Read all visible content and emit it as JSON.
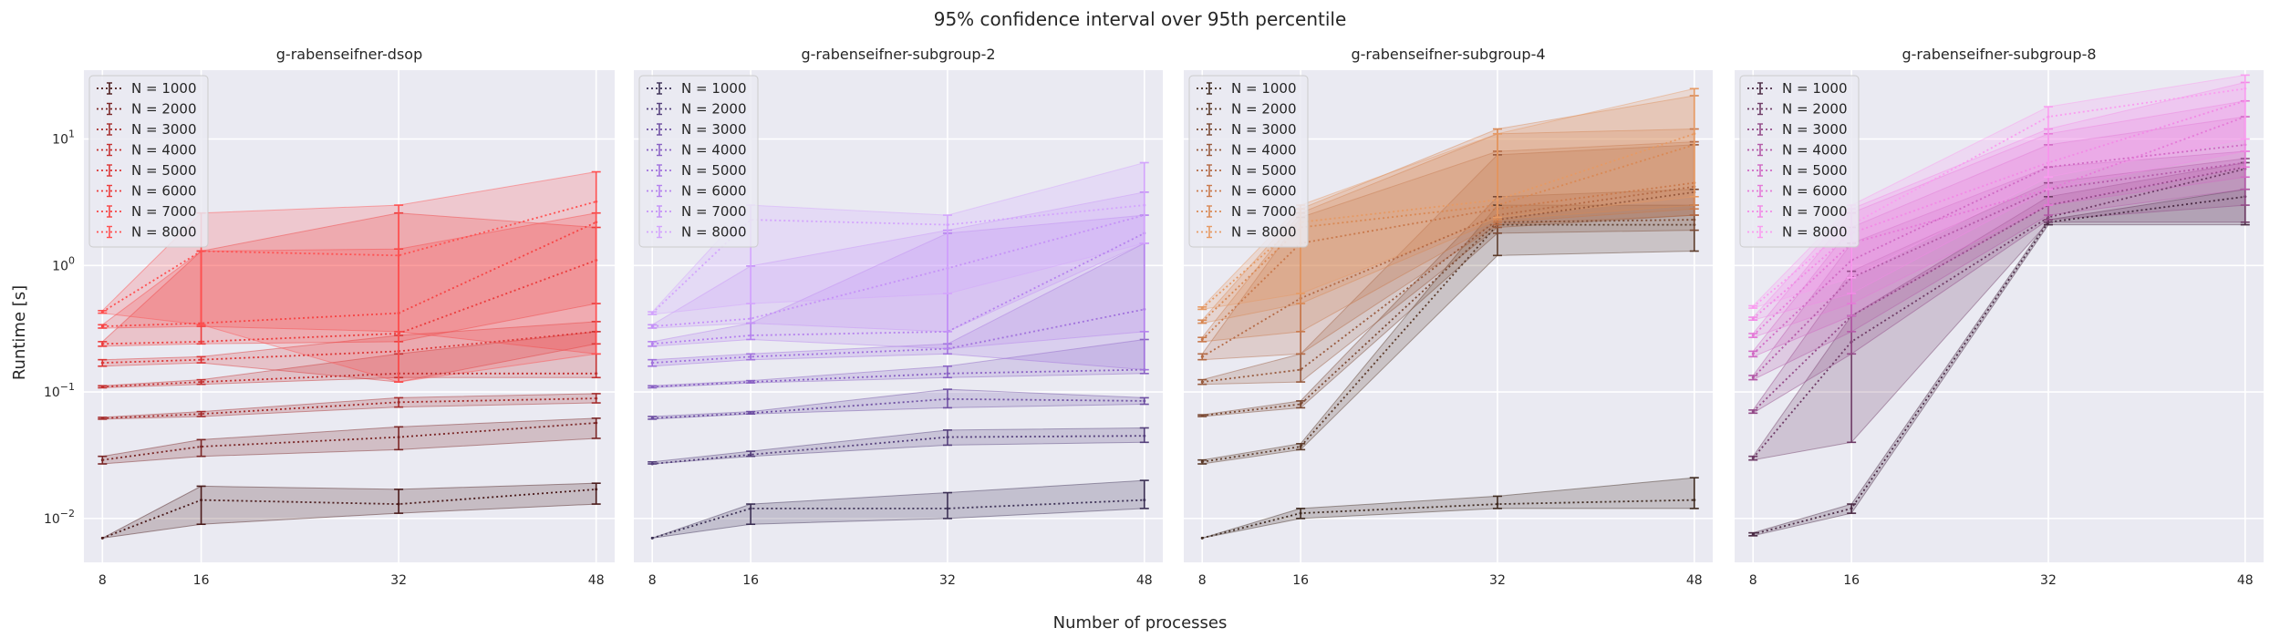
{
  "figure": {
    "title": "95% confidence interval over 95th percentile",
    "xlabel": "Number of processes",
    "ylabel": "Runtime [s]"
  },
  "legend_labels": [
    "N = 1000",
    "N = 2000",
    "N = 3000",
    "N = 4000",
    "N = 5000",
    "N = 6000",
    "N = 7000",
    "N = 8000"
  ],
  "chart_data": [
    {
      "type": "line",
      "title": "g-rabenseifner-dsop",
      "x": [
        8,
        16,
        32,
        48
      ],
      "xlim": [
        6.5,
        49.5
      ],
      "yscale": "log",
      "ylim": [
        0.0045,
        35
      ],
      "grid": true,
      "legend": "top-left",
      "colors": [
        "#4a1a1a",
        "#7a2626",
        "#a52d2d",
        "#c43131",
        "#dc3636",
        "#ec3c3c",
        "#f74444",
        "#ff5050"
      ],
      "series": [
        {
          "name": "N = 1000",
          "values": [
            0.007,
            0.014,
            0.013,
            0.017
          ],
          "lower": [
            0.007,
            0.009,
            0.011,
            0.013
          ],
          "upper": [
            0.007,
            0.018,
            0.017,
            0.019
          ]
        },
        {
          "name": "N = 2000",
          "values": [
            0.029,
            0.037,
            0.044,
            0.057
          ],
          "lower": [
            0.027,
            0.031,
            0.035,
            0.043
          ],
          "upper": [
            0.031,
            0.042,
            0.053,
            0.062
          ]
        },
        {
          "name": "N = 3000",
          "values": [
            0.062,
            0.067,
            0.083,
            0.089
          ],
          "lower": [
            0.061,
            0.064,
            0.076,
            0.082
          ],
          "upper": [
            0.063,
            0.07,
            0.09,
            0.097
          ]
        },
        {
          "name": "N = 4000",
          "values": [
            0.11,
            0.12,
            0.14,
            0.14
          ],
          "lower": [
            0.108,
            0.115,
            0.13,
            0.13
          ],
          "upper": [
            0.112,
            0.125,
            0.2,
            0.3
          ]
        },
        {
          "name": "N = 5000",
          "values": [
            0.17,
            0.18,
            0.21,
            0.3
          ],
          "lower": [
            0.16,
            0.17,
            0.12,
            0.24
          ],
          "upper": [
            0.18,
            0.19,
            0.28,
            0.36
          ]
        },
        {
          "name": "N = 6000",
          "values": [
            0.24,
            0.25,
            0.29,
            1.1
          ],
          "lower": [
            0.23,
            0.24,
            0.25,
            0.5
          ],
          "upper": [
            0.25,
            1.3,
            2.6,
            2.0
          ]
        },
        {
          "name": "N = 7000",
          "values": [
            0.33,
            0.35,
            0.42,
            2.2
          ],
          "lower": [
            0.32,
            0.33,
            0.3,
            0.2
          ],
          "upper": [
            0.34,
            1.3,
            1.35,
            2.6
          ]
        },
        {
          "name": "N = 8000",
          "values": [
            0.43,
            1.3,
            1.2,
            3.2
          ],
          "lower": [
            0.42,
            0.34,
            0.12,
            0.2
          ],
          "upper": [
            0.44,
            2.6,
            3.0,
            5.5
          ]
        }
      ]
    },
    {
      "type": "line",
      "title": "g-rabenseifner-subgroup-2",
      "x": [
        8,
        16,
        32,
        48
      ],
      "xlim": [
        6.5,
        49.5
      ],
      "yscale": "log",
      "ylim": [
        0.0045,
        35
      ],
      "grid": true,
      "legend": "top-left",
      "colors": [
        "#3b2f54",
        "#55407c",
        "#6f50a3",
        "#8a62c4",
        "#a172dd",
        "#b582ee",
        "#c592f7",
        "#d3a4fd"
      ],
      "series": [
        {
          "name": "N = 1000",
          "values": [
            0.007,
            0.012,
            0.012,
            0.014
          ],
          "lower": [
            0.007,
            0.009,
            0.01,
            0.012
          ],
          "upper": [
            0.007,
            0.013,
            0.016,
            0.02
          ]
        },
        {
          "name": "N = 2000",
          "values": [
            0.027,
            0.032,
            0.044,
            0.045
          ],
          "lower": [
            0.027,
            0.031,
            0.038,
            0.04
          ],
          "upper": [
            0.028,
            0.034,
            0.05,
            0.052
          ]
        },
        {
          "name": "N = 3000",
          "values": [
            0.062,
            0.068,
            0.088,
            0.085
          ],
          "lower": [
            0.061,
            0.067,
            0.075,
            0.08
          ],
          "upper": [
            0.064,
            0.07,
            0.105,
            0.09
          ]
        },
        {
          "name": "N = 4000",
          "values": [
            0.11,
            0.12,
            0.14,
            0.15
          ],
          "lower": [
            0.108,
            0.118,
            0.13,
            0.14
          ],
          "upper": [
            0.112,
            0.123,
            0.16,
            0.26
          ]
        },
        {
          "name": "N = 5000",
          "values": [
            0.17,
            0.19,
            0.22,
            0.45
          ],
          "lower": [
            0.16,
            0.18,
            0.2,
            0.15
          ],
          "upper": [
            0.18,
            0.2,
            0.24,
            1.5
          ]
        },
        {
          "name": "N = 6000",
          "values": [
            0.24,
            0.28,
            0.3,
            1.8
          ],
          "lower": [
            0.23,
            0.26,
            0.22,
            0.3
          ],
          "upper": [
            0.25,
            0.35,
            1.8,
            2.5
          ]
        },
        {
          "name": "N = 7000",
          "values": [
            0.33,
            0.38,
            0.95,
            2.5
          ],
          "lower": [
            0.32,
            0.35,
            0.3,
            1.5
          ],
          "upper": [
            0.34,
            0.99,
            1.9,
            3.8
          ]
        },
        {
          "name": "N = 8000",
          "values": [
            0.42,
            2.3,
            2.1,
            3.0
          ],
          "lower": [
            0.41,
            0.5,
            0.6,
            1.5
          ],
          "upper": [
            0.43,
            3.0,
            2.5,
            6.5
          ]
        }
      ]
    },
    {
      "type": "line",
      "title": "g-rabenseifner-subgroup-4",
      "x": [
        8,
        16,
        32,
        48
      ],
      "xlim": [
        6.5,
        49.5
      ],
      "yscale": "log",
      "ylim": [
        0.0045,
        35
      ],
      "grid": true,
      "legend": "top-left",
      "colors": [
        "#3f2a20",
        "#5c3b2a",
        "#7b4a34",
        "#985a3d",
        "#b46a45",
        "#c9794c",
        "#d98955",
        "#e69a64"
      ],
      "series": [
        {
          "name": "N = 1000",
          "values": [
            0.007,
            0.011,
            0.013,
            0.014
          ],
          "lower": [
            0.007,
            0.01,
            0.012,
            0.012
          ],
          "upper": [
            0.007,
            0.012,
            0.015,
            0.021
          ]
        },
        {
          "name": "N = 2000",
          "values": [
            0.028,
            0.037,
            2.1,
            2.1
          ],
          "lower": [
            0.027,
            0.035,
            1.2,
            1.3
          ],
          "upper": [
            0.029,
            0.039,
            3.0,
            3.0
          ]
        },
        {
          "name": "N = 3000",
          "values": [
            0.065,
            0.08,
            2.2,
            2.3
          ],
          "lower": [
            0.064,
            0.075,
            1.8,
            1.9
          ],
          "upper": [
            0.066,
            0.085,
            3.5,
            4.0
          ]
        },
        {
          "name": "N = 4000",
          "values": [
            0.12,
            0.15,
            2.3,
            3.8
          ],
          "lower": [
            0.115,
            0.12,
            2.0,
            2.5
          ],
          "upper": [
            0.125,
            0.2,
            7.5,
            9.0
          ]
        },
        {
          "name": "N = 5000",
          "values": [
            0.19,
            0.55,
            2.5,
            4.2
          ],
          "lower": [
            0.18,
            0.2,
            2.1,
            2.5
          ],
          "upper": [
            0.2,
            2.4,
            8.0,
            9.5
          ]
        },
        {
          "name": "N = 6000",
          "values": [
            0.26,
            1.5,
            2.8,
            4.5
          ],
          "lower": [
            0.25,
            0.3,
            2.2,
            2.8
          ],
          "upper": [
            0.27,
            2.6,
            11.0,
            12.0
          ]
        },
        {
          "name": "N = 7000",
          "values": [
            0.36,
            2.0,
            3.0,
            9.0
          ],
          "lower": [
            0.35,
            0.5,
            2.3,
            3.0
          ],
          "upper": [
            0.37,
            2.8,
            12.0,
            22.0
          ]
        },
        {
          "name": "N = 8000",
          "values": [
            0.46,
            2.2,
            3.3,
            11.0
          ],
          "lower": [
            0.45,
            0.6,
            2.4,
            3.5
          ],
          "upper": [
            0.47,
            3.0,
            11.0,
            25.0
          ]
        }
      ]
    },
    {
      "type": "line",
      "title": "g-rabenseifner-subgroup-8",
      "x": [
        8,
        16,
        32,
        48
      ],
      "xlim": [
        6.5,
        49.5
      ],
      "yscale": "log",
      "ylim": [
        0.0045,
        35
      ],
      "grid": true,
      "legend": "top-left",
      "colors": [
        "#4a2a44",
        "#6e3b66",
        "#934a88",
        "#b45aa8",
        "#d06ac4",
        "#e57ad8",
        "#f28ae6",
        "#fa9cf0"
      ],
      "series": [
        {
          "name": "N = 1000",
          "values": [
            0.0075,
            0.012,
            2.2,
            3.5
          ],
          "lower": [
            0.0073,
            0.011,
            2.1,
            2.1
          ],
          "upper": [
            0.0077,
            0.013,
            2.3,
            4.0
          ]
        },
        {
          "name": "N = 2000",
          "values": [
            0.03,
            0.25,
            2.4,
            5.8
          ],
          "lower": [
            0.029,
            0.04,
            2.2,
            2.2
          ],
          "upper": [
            0.031,
            0.4,
            3.5,
            6.5
          ]
        },
        {
          "name": "N = 3000",
          "values": [
            0.07,
            0.4,
            3.0,
            6.0
          ],
          "lower": [
            0.068,
            0.2,
            2.3,
            3.0
          ],
          "upper": [
            0.072,
            0.9,
            4.5,
            7.0
          ]
        },
        {
          "name": "N = 4000",
          "values": [
            0.13,
            0.8,
            4.0,
            6.5
          ],
          "lower": [
            0.125,
            0.3,
            2.5,
            4.0
          ],
          "upper": [
            0.135,
            1.5,
            6.0,
            8.0
          ]
        },
        {
          "name": "N = 5000",
          "values": [
            0.2,
            1.1,
            6.0,
            9.0
          ],
          "lower": [
            0.19,
            0.4,
            3.0,
            5.0
          ],
          "upper": [
            0.21,
            2.0,
            9.0,
            15.0
          ]
        },
        {
          "name": "N = 6000",
          "values": [
            0.28,
            1.5,
            4.0,
            15.0
          ],
          "lower": [
            0.27,
            0.5,
            3.0,
            6.0
          ],
          "upper": [
            0.29,
            2.6,
            11.0,
            20.0
          ]
        },
        {
          "name": "N = 7000",
          "values": [
            0.38,
            1.8,
            6.5,
            20.0
          ],
          "lower": [
            0.37,
            0.6,
            4.0,
            8.0
          ],
          "upper": [
            0.39,
            2.8,
            12.0,
            28.0
          ]
        },
        {
          "name": "N = 8000",
          "values": [
            0.47,
            2.1,
            15.0,
            25.0
          ],
          "lower": [
            0.46,
            0.8,
            5.0,
            10.0
          ],
          "upper": [
            0.48,
            3.0,
            18.0,
            32.0
          ]
        }
      ]
    }
  ]
}
